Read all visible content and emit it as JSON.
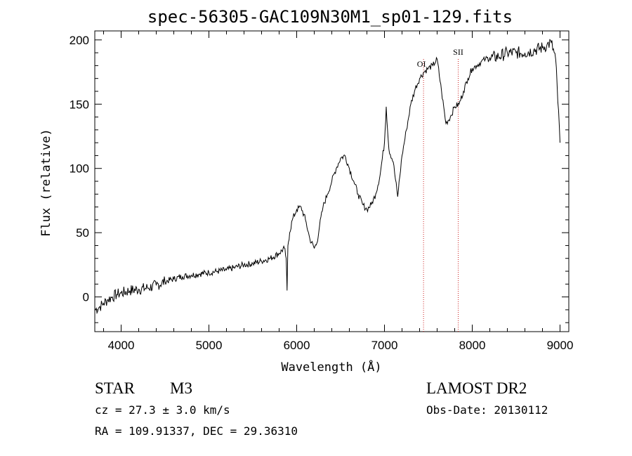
{
  "title": "spec-56305-GAC109N30M1_sp01-129.fits",
  "chart_data": {
    "type": "line",
    "xlabel": "Wavelength (Å)",
    "ylabel": "Flux (relative)",
    "xlim": [
      3700,
      9100
    ],
    "ylim": [
      -27,
      207
    ],
    "xticks": [
      4000,
      5000,
      6000,
      7000,
      8000,
      9000
    ],
    "yticks": [
      0,
      50,
      100,
      150,
      200
    ],
    "grid": false,
    "series": [
      {
        "x": [
          3700,
          3750,
          3800,
          3850,
          3900,
          3950,
          4000,
          4100,
          4200,
          4300,
          4400,
          4500,
          4600,
          4700,
          4800,
          4900,
          5000,
          5100,
          5200,
          5300,
          5400,
          5500,
          5600,
          5700,
          5800,
          5860,
          5880,
          5890,
          5900,
          5920,
          5950,
          6000,
          6050,
          6100,
          6150,
          6200,
          6230,
          6260,
          6300,
          6350,
          6400,
          6450,
          6500,
          6550,
          6600,
          6650,
          6700,
          6750,
          6800,
          6850,
          6900,
          6950,
          7000,
          7020,
          7050,
          7100,
          7150,
          7200,
          7250,
          7300,
          7350,
          7400,
          7450,
          7500,
          7550,
          7600,
          7650,
          7700,
          7750,
          7800,
          7850,
          7900,
          7950,
          8000,
          8050,
          8100,
          8150,
          8200,
          8300,
          8400,
          8500,
          8600,
          8700,
          8800,
          8850,
          8900,
          8950,
          9000
        ],
        "y": [
          -10,
          -8,
          -5,
          -2,
          0,
          2,
          3,
          5,
          6,
          7,
          9,
          12,
          14,
          16,
          17,
          18,
          19,
          20,
          21,
          23,
          25,
          26,
          28,
          30,
          34,
          38,
          30,
          5,
          40,
          50,
          60,
          68,
          70,
          60,
          45,
          38,
          42,
          55,
          70,
          80,
          90,
          100,
          108,
          110,
          100,
          90,
          80,
          72,
          68,
          72,
          80,
          95,
          120,
          148,
          115,
          105,
          78,
          110,
          130,
          150,
          162,
          170,
          175,
          178,
          180,
          185,
          160,
          135,
          140,
          148,
          150,
          160,
          170,
          178,
          180,
          183,
          185,
          186,
          187,
          190,
          190,
          190,
          192,
          194,
          196,
          198,
          185,
          120
        ]
      }
    ],
    "markers": [
      {
        "label": "OI",
        "x": 7445
      },
      {
        "label": "SII",
        "x": 7840
      }
    ]
  },
  "footer": {
    "star_label": "STAR",
    "star_type": "M3",
    "survey": "LAMOST DR2",
    "cz": "cz = 27.3 ± 3.0 km/s",
    "obs_date": "Obs-Date: 20130112",
    "radec": "RA = 109.91337, DEC =  29.36310"
  },
  "colors": {
    "marker_line": "#cc2222",
    "spectrum": "#000000",
    "axis": "#000000"
  }
}
